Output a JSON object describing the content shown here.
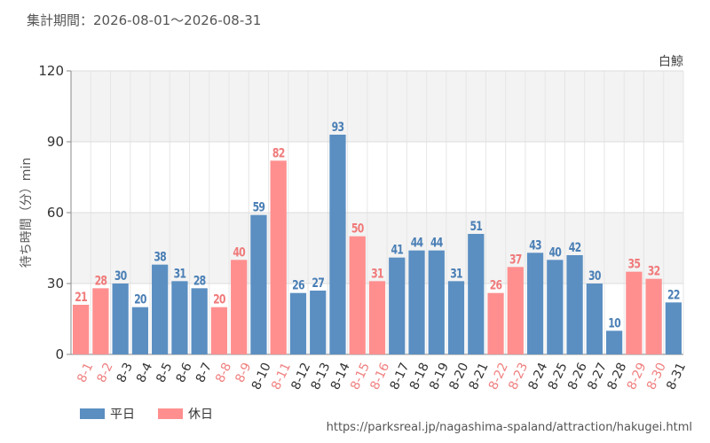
{
  "period_text": "集計期間：2026-08-01～2026-08-31",
  "footer_url": "https://parksreal.jp/nagashima-spaland/attraction/hakugei.html",
  "colors": {
    "weekday": "#5b8fc2",
    "holiday": "#ff8f8f",
    "holiday_label": "#f08080",
    "grid": "#dddddd",
    "band": "#f3f3f3"
  },
  "chart_data": {
    "type": "bar",
    "title": "白鯨",
    "xlabel": "",
    "ylabel": "待ち時間（分）min",
    "ylim": [
      0,
      120
    ],
    "yticks": [
      0,
      30,
      60,
      90,
      120
    ],
    "grid": true,
    "legend_placement": "bottom-left",
    "categories": [
      "8-1",
      "8-2",
      "8-3",
      "8-4",
      "8-5",
      "8-6",
      "8-7",
      "8-8",
      "8-9",
      "8-10",
      "8-11",
      "8-12",
      "8-13",
      "8-14",
      "8-15",
      "8-16",
      "8-17",
      "8-18",
      "8-19",
      "8-20",
      "8-21",
      "8-22",
      "8-23",
      "8-24",
      "8-25",
      "8-26",
      "8-27",
      "8-28",
      "8-29",
      "8-30",
      "8-31"
    ],
    "values": [
      21,
      28,
      30,
      20,
      38,
      31,
      28,
      20,
      40,
      59,
      82,
      26,
      27,
      93,
      50,
      31,
      41,
      44,
      44,
      31,
      51,
      26,
      37,
      43,
      40,
      42,
      30,
      10,
      35,
      32,
      22
    ],
    "day_type": [
      "holiday",
      "holiday",
      "weekday",
      "weekday",
      "weekday",
      "weekday",
      "weekday",
      "holiday",
      "holiday",
      "weekday",
      "holiday",
      "weekday",
      "weekday",
      "weekday",
      "holiday",
      "holiday",
      "weekday",
      "weekday",
      "weekday",
      "weekday",
      "weekday",
      "holiday",
      "holiday",
      "weekday",
      "weekday",
      "weekday",
      "weekday",
      "weekday",
      "holiday",
      "holiday",
      "weekday"
    ],
    "series": [
      {
        "name": "平日",
        "key": "weekday"
      },
      {
        "name": "休日",
        "key": "holiday"
      }
    ]
  }
}
